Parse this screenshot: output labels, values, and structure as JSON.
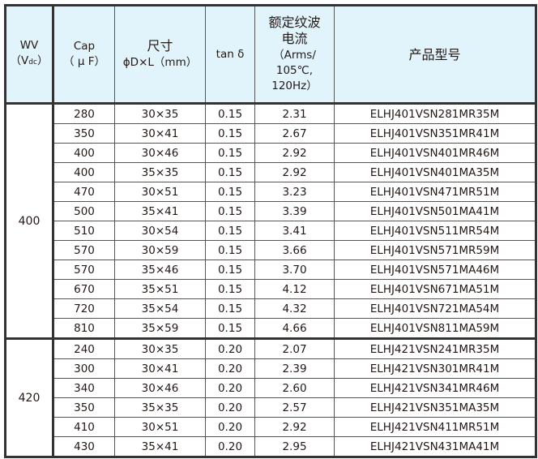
{
  "header": {
    "wv": "WV",
    "wv_unit_open": "（V",
    "wv_unit_sub": "dc",
    "wv_unit_close": "）",
    "cap": "Cap",
    "cap_unit": "（ μ F）",
    "size": "尺寸",
    "size_unit": "ϕD×L（mm）",
    "tan": "tan δ",
    "ripple": "额定纹波电流",
    "ripple_unit1": "（Arms/",
    "ripple_unit2": "105℃,",
    "ripple_unit3": "120Hz）",
    "part": "产品型号"
  },
  "groups": [
    {
      "wv": "400",
      "rows": [
        [
          "280",
          "30×35",
          "0.15",
          "2.31",
          "ELHJ401VSN281MR35M"
        ],
        [
          "350",
          "30×41",
          "0.15",
          "2.67",
          "ELHJ401VSN351MR41M"
        ],
        [
          "400",
          "30×46",
          "0.15",
          "2.92",
          "ELHJ401VSN401MR46M"
        ],
        [
          "400",
          "35×35",
          "0.15",
          "2.92",
          "ELHJ401VSN401MA35M"
        ],
        [
          "470",
          "30×51",
          "0.15",
          "3.23",
          "ELHJ401VSN471MR51M"
        ],
        [
          "500",
          "35×41",
          "0.15",
          "3.39",
          "ELHJ401VSN501MA41M"
        ],
        [
          "510",
          "30×54",
          "0.15",
          "3.41",
          "ELHJ401VSN511MR54M"
        ],
        [
          "570",
          "30×59",
          "0.15",
          "3.66",
          "ELHJ401VSN571MR59M"
        ],
        [
          "570",
          "35×46",
          "0.15",
          "3.70",
          "ELHJ401VSN571MA46M"
        ],
        [
          "670",
          "35×51",
          "0.15",
          "4.12",
          "ELHJ401VSN671MA51M"
        ],
        [
          "720",
          "35×54",
          "0.15",
          "4.32",
          "ELHJ401VSN721MA54M"
        ],
        [
          "810",
          "35×59",
          "0.15",
          "4.66",
          "ELHJ401VSN811MA59M"
        ]
      ]
    },
    {
      "wv": "420",
      "rows": [
        [
          "240",
          "30×35",
          "0.20",
          "2.07",
          "ELHJ421VSN241MR35M"
        ],
        [
          "300",
          "30×41",
          "0.20",
          "2.39",
          "ELHJ421VSN301MR41M"
        ],
        [
          "340",
          "30×46",
          "0.20",
          "2.60",
          "ELHJ421VSN341MR46M"
        ],
        [
          "350",
          "35×35",
          "0.20",
          "2.57",
          "ELHJ421VSN351MA35M"
        ],
        [
          "410",
          "30×51",
          "0.20",
          "2.92",
          "ELHJ421VSN411MR51M"
        ],
        [
          "430",
          "35×41",
          "0.20",
          "2.95",
          "ELHJ421VSN431MA41M"
        ]
      ]
    }
  ]
}
